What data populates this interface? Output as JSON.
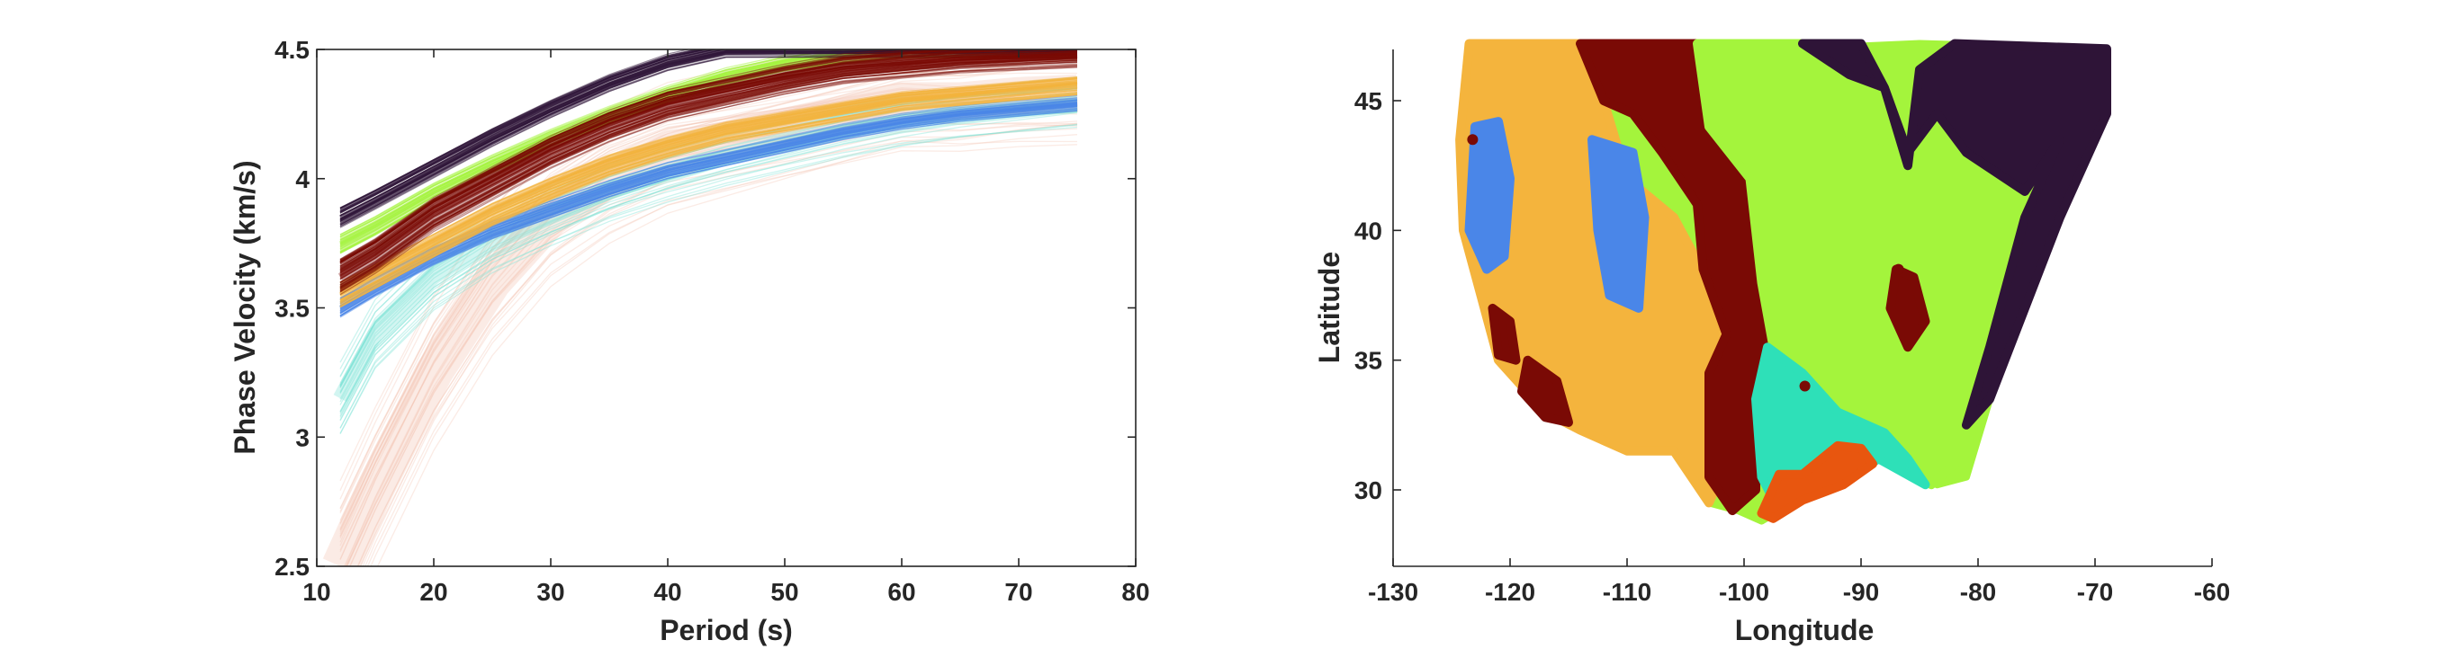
{
  "chart_data": [
    {
      "type": "line",
      "xlabel": "Period (s)",
      "ylabel": "Phase Velocity (km/s)",
      "xlim": [
        10,
        80
      ],
      "ylim": [
        2.5,
        4.5
      ],
      "xticks": [
        10,
        20,
        30,
        40,
        50,
        60,
        70,
        80
      ],
      "yticks": [
        2.5,
        3,
        3.5,
        4,
        4.5
      ],
      "xtick_labels": [
        "10",
        "20",
        "30",
        "40",
        "50",
        "60",
        "70",
        "80"
      ],
      "ytick_labels": [
        "2.5",
        "3",
        "3.5",
        "4",
        "4.5"
      ],
      "grid": false,
      "box": true,
      "x": [
        12,
        15,
        20,
        25,
        30,
        35,
        40,
        45,
        50,
        55,
        60,
        65,
        70,
        75
      ],
      "series": [
        {
          "color": "#f4c7b4",
          "values": [
            2.5,
            2.8,
            3.25,
            3.6,
            3.85,
            4.0,
            4.1,
            4.15,
            4.2,
            4.25,
            4.3,
            4.3,
            4.32,
            4.33
          ],
          "spread": 0.35,
          "count": 40,
          "opacity": 0.35
        },
        {
          "color": "#7fe3d8",
          "values": [
            3.15,
            3.4,
            3.62,
            3.76,
            3.86,
            3.95,
            4.02,
            4.08,
            4.13,
            4.18,
            4.22,
            4.25,
            4.27,
            4.29
          ],
          "spread": 0.14,
          "count": 30,
          "opacity": 0.4
        },
        {
          "color": "#4a86e8",
          "values": [
            3.5,
            3.58,
            3.7,
            3.8,
            3.88,
            3.96,
            4.03,
            4.08,
            4.13,
            4.18,
            4.22,
            4.25,
            4.27,
            4.29
          ],
          "spread": 0.04,
          "count": 40,
          "opacity": 0.5
        },
        {
          "color": "#f4b43d",
          "values": [
            3.55,
            3.62,
            3.74,
            3.86,
            3.96,
            4.05,
            4.12,
            4.18,
            4.22,
            4.26,
            4.3,
            4.32,
            4.34,
            4.36
          ],
          "spread": 0.05,
          "count": 60,
          "opacity": 0.5
        },
        {
          "color": "#a4f43c",
          "values": [
            3.75,
            3.82,
            3.95,
            4.06,
            4.16,
            4.25,
            4.33,
            4.4,
            4.45,
            4.48,
            4.5,
            4.5,
            4.5,
            4.5
          ],
          "spread": 0.04,
          "count": 40,
          "opacity": 0.5
        },
        {
          "color": "#2e1437",
          "values": [
            3.85,
            3.92,
            4.04,
            4.16,
            4.27,
            4.37,
            4.45,
            4.5,
            4.5,
            4.5,
            4.5,
            4.5,
            4.5,
            4.5
          ],
          "spread": 0.04,
          "count": 50,
          "opacity": 0.5
        },
        {
          "color": "#7a0a05",
          "values": [
            3.62,
            3.7,
            3.86,
            3.98,
            4.1,
            4.2,
            4.28,
            4.33,
            4.38,
            4.42,
            4.44,
            4.46,
            4.47,
            4.48
          ],
          "spread": 0.07,
          "count": 90,
          "opacity": 0.45
        }
      ]
    },
    {
      "type": "scatter",
      "xlabel": "Longitude",
      "ylabel": "Latitude",
      "xlim": [
        -130,
        -60
      ],
      "ylim": [
        27,
        47
      ],
      "xticks": [
        -130,
        -120,
        -110,
        -100,
        -90,
        -80,
        -70,
        -60
      ],
      "yticks": [
        30,
        35,
        40,
        45
      ],
      "xtick_labels": [
        "-130",
        "-120",
        "-110",
        "-100",
        "-90",
        "-80",
        "-70",
        "-60"
      ],
      "ytick_labels": [
        "30",
        "35",
        "40",
        "45"
      ],
      "grid": false,
      "box": false,
      "region_outline": [
        [
          -123.5,
          47.2
        ],
        [
          -110,
          47.2
        ],
        [
          -95,
          47.0
        ],
        [
          -85,
          47.2
        ],
        [
          -69,
          47.0
        ],
        [
          -69,
          44.5
        ],
        [
          -73,
          40.5
        ],
        [
          -76,
          37
        ],
        [
          -79,
          33.5
        ],
        [
          -81,
          30.5
        ],
        [
          -83.5,
          30.2
        ],
        [
          -85,
          30.8
        ],
        [
          -89,
          31.2
        ],
        [
          -92,
          30.2
        ],
        [
          -95,
          29.8
        ],
        [
          -97,
          29.2
        ],
        [
          -98.5,
          28.8
        ],
        [
          -100.5,
          29.2
        ],
        [
          -103,
          29.5
        ],
        [
          -106,
          31.5
        ],
        [
          -110,
          31.5
        ],
        [
          -114,
          32.3
        ],
        [
          -117,
          33
        ],
        [
          -119,
          34
        ],
        [
          -121,
          35
        ],
        [
          -122.5,
          37.5
        ],
        [
          -124,
          40
        ],
        [
          -124.3,
          43.5
        ],
        [
          -123.5,
          47.2
        ]
      ],
      "regions": [
        {
          "color": "#f4b43d",
          "polygon": [
            [
              -123.5,
              47.2
            ],
            [
              -114,
              47.2
            ],
            [
              -112,
              45
            ],
            [
              -110,
              42
            ],
            [
              -106,
              40.5
            ],
            [
              -103,
              38
            ],
            [
              -101,
              35.5
            ],
            [
              -100.5,
              32
            ],
            [
              -103,
              29.5
            ],
            [
              -106,
              31.5
            ],
            [
              -110,
              31.5
            ],
            [
              -114,
              32.3
            ],
            [
              -117,
              33
            ],
            [
              -119,
              34
            ],
            [
              -121,
              35
            ],
            [
              -122.5,
              37.5
            ],
            [
              -124,
              40
            ],
            [
              -124.3,
              43.5
            ]
          ]
        },
        {
          "color": "#4a86e8",
          "polygon": [
            [
              -123,
              44
            ],
            [
              -121,
              44.2
            ],
            [
              -120,
              42
            ],
            [
              -120.5,
              39
            ],
            [
              -122,
              38.5
            ],
            [
              -123.5,
              40
            ]
          ]
        },
        {
          "color": "#4a86e8",
          "polygon": [
            [
              -113,
              43.5
            ],
            [
              -109.5,
              43
            ],
            [
              -108.5,
              40.5
            ],
            [
              -109,
              37
            ],
            [
              -111.5,
              37.5
            ],
            [
              -112.5,
              40
            ]
          ]
        },
        {
          "color": "#7a0a05",
          "polygon": [
            [
              -114,
              47.2
            ],
            [
              -104,
              47.2
            ],
            [
              -103,
              44
            ],
            [
              -99.5,
              42
            ],
            [
              -98.5,
              38
            ],
            [
              -97,
              35.5
            ],
            [
              -99,
              33.5
            ],
            [
              -99,
              30
            ],
            [
              -101,
              29.2
            ],
            [
              -103,
              30.5
            ],
            [
              -103,
              34.5
            ],
            [
              -101.5,
              36
            ],
            [
              -103.5,
              38.5
            ],
            [
              -104,
              41
            ],
            [
              -107,
              43
            ],
            [
              -109.5,
              44.5
            ],
            [
              -112,
              45
            ]
          ]
        },
        {
          "color": "#7a0a05",
          "polygon": [
            [
              -118.5,
              35
            ],
            [
              -116,
              34.2
            ],
            [
              -115,
              32.6
            ],
            [
              -117,
              32.8
            ],
            [
              -119,
              33.8
            ]
          ]
        },
        {
          "color": "#7a0a05",
          "polygon": [
            [
              -121.5,
              37
            ],
            [
              -120,
              36.5
            ],
            [
              -119.5,
              35
            ],
            [
              -121,
              35.2
            ]
          ]
        },
        {
          "color": "#a4f43c",
          "polygon": [
            [
              -104,
              47.2
            ],
            [
              -93,
              47.2
            ],
            [
              -92,
              44
            ],
            [
              -88,
              43
            ],
            [
              -84.5,
              45.5
            ],
            [
              -82,
              47
            ],
            [
              -70,
              47
            ],
            [
              -72,
              44.2
            ],
            [
              -75,
              41
            ],
            [
              -78,
              37.5
            ],
            [
              -80.5,
              34
            ],
            [
              -82,
              31
            ],
            [
              -84,
              30.2
            ],
            [
              -86,
              31.2
            ],
            [
              -88,
              32
            ],
            [
              -92,
              33
            ],
            [
              -95,
              34.5
            ],
            [
              -97.5,
              35.5
            ],
            [
              -98.5,
              38
            ],
            [
              -99.5,
              42
            ],
            [
              -103,
              44
            ]
          ]
        },
        {
          "color": "#2e1437",
          "polygon": [
            [
              -95,
              47.2
            ],
            [
              -90,
              47.2
            ],
            [
              -88,
              45.5
            ],
            [
              -86,
              42.5
            ],
            [
              -85,
              46.2
            ],
            [
              -82,
              47.2
            ],
            [
              -69,
              47.0
            ],
            [
              -69,
              44.5
            ],
            [
              -73,
              40.5
            ],
            [
              -76,
              37
            ],
            [
              -79,
              33.5
            ],
            [
              -81,
              32.5
            ],
            [
              -79,
              35.5
            ],
            [
              -76,
              40.5
            ],
            [
              -73,
              43.5
            ],
            [
              -76,
              41.5
            ],
            [
              -81,
              43
            ],
            [
              -83.5,
              44.5
            ],
            [
              -86,
              43
            ],
            [
              -88,
              45.5
            ],
            [
              -91,
              46
            ]
          ]
        },
        {
          "color": "#7a0a05",
          "polygon": [
            [
              -87,
              38.5
            ],
            [
              -85.5,
              38.2
            ],
            [
              -84.5,
              36.5
            ],
            [
              -86,
              35.5
            ],
            [
              -87.5,
              37
            ]
          ]
        },
        {
          "color": "#2ee0b8",
          "polygon": [
            [
              -98,
              35.5
            ],
            [
              -95,
              34.5
            ],
            [
              -92,
              33
            ],
            [
              -88,
              32.2
            ],
            [
              -86,
              31.2
            ],
            [
              -84.5,
              30.2
            ],
            [
              -88.5,
              31.2
            ],
            [
              -92,
              30.2
            ],
            [
              -95,
              29.8
            ],
            [
              -97,
              29.2
            ],
            [
              -98.5,
              30.5
            ],
            [
              -99,
              33.5
            ]
          ]
        },
        {
          "color": "#e8560f",
          "polygon": [
            [
              -97,
              30.6
            ],
            [
              -95,
              30.6
            ],
            [
              -92,
              31.7
            ],
            [
              -90,
              31.6
            ],
            [
              -89,
              31.0
            ],
            [
              -91.5,
              30.2
            ],
            [
              -95,
              29.6
            ],
            [
              -97.5,
              28.9
            ],
            [
              -98.5,
              29.1
            ]
          ]
        }
      ],
      "points": [
        {
          "x": -123.2,
          "y": 43.5,
          "color": "#7a0a05"
        },
        {
          "x": -94.8,
          "y": 34.0,
          "color": "#7a0a05"
        },
        {
          "x": -86.8,
          "y": 38.5,
          "color": "#7a0a05"
        }
      ]
    }
  ]
}
